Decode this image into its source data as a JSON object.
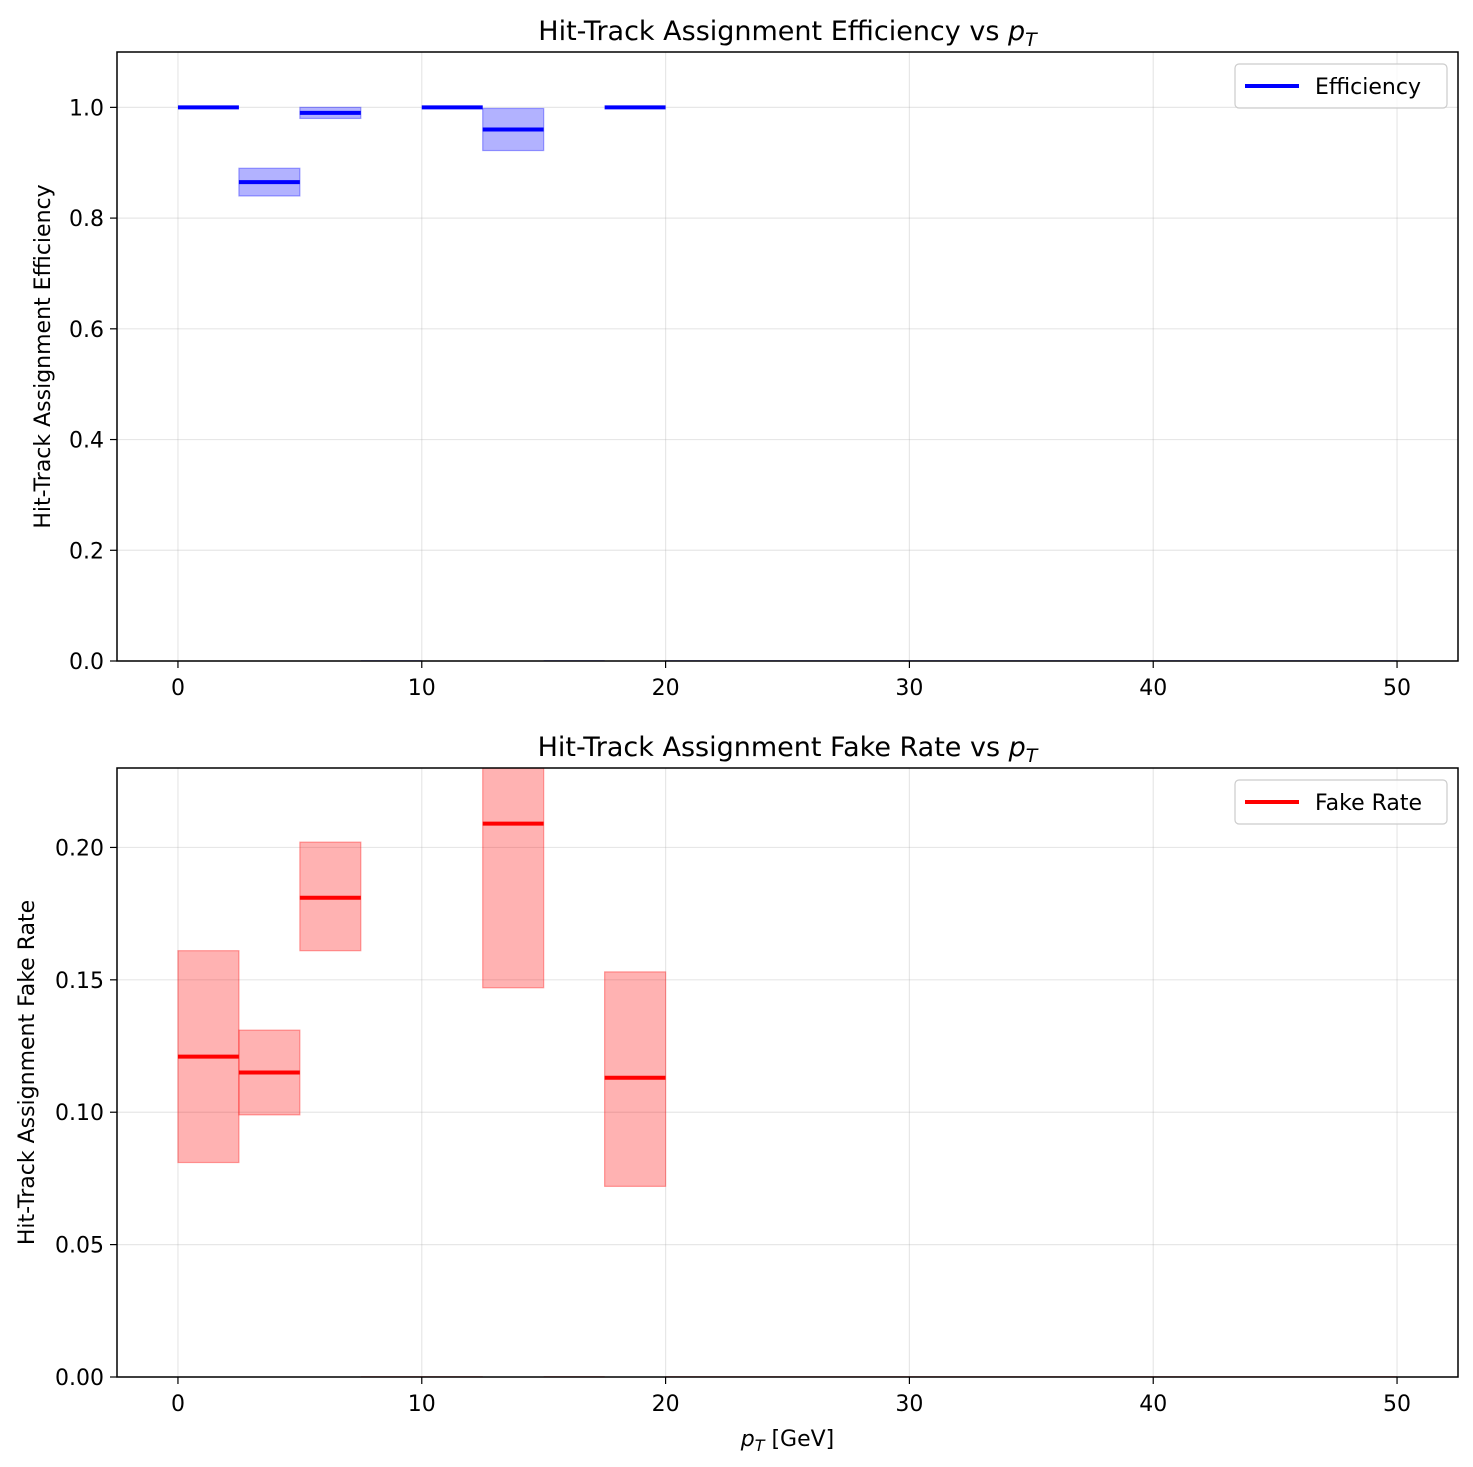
{
  "chart_data": [
    {
      "type": "step",
      "title": "Hit-Track Assignment Efficiency vs ",
      "title_math": "p",
      "title_math_sub": "T",
      "xlabel": "",
      "ylabel": "Hit-Track Assignment Efficiency",
      "xlim": [
        -2.5,
        52.5
      ],
      "ylim": [
        0.0,
        1.1
      ],
      "xticks": [
        0,
        10,
        20,
        30,
        40,
        50
      ],
      "yticks": [
        0.0,
        0.2,
        0.4,
        0.6,
        0.8,
        1.0
      ],
      "ytick_labels": [
        "0.0",
        "0.2",
        "0.4",
        "0.6",
        "0.8",
        "1.0"
      ],
      "grid": true,
      "legend": "top-right",
      "series": [
        {
          "name": "Efficiency",
          "color": "#0000ff",
          "bins": [
            {
              "x0": 0.0,
              "x1": 2.5,
              "y": 1.0,
              "lo": 1.0,
              "hi": 1.0
            },
            {
              "x0": 2.5,
              "x1": 5.0,
              "y": 0.865,
              "lo": 0.84,
              "hi": 0.89
            },
            {
              "x0": 5.0,
              "x1": 7.5,
              "y": 0.99,
              "lo": 0.98,
              "hi": 1.0
            },
            {
              "x0": 7.5,
              "x1": 10.0,
              "y": 0.0,
              "lo": 0.0,
              "hi": 0.0
            },
            {
              "x0": 10.0,
              "x1": 12.5,
              "y": 1.0,
              "lo": 1.0,
              "hi": 1.0
            },
            {
              "x0": 12.5,
              "x1": 15.0,
              "y": 0.96,
              "lo": 0.922,
              "hi": 0.998
            },
            {
              "x0": 15.0,
              "x1": 17.5,
              "y": 0.0,
              "lo": 0.0,
              "hi": 0.0
            },
            {
              "x0": 17.5,
              "x1": 20.0,
              "y": 1.0,
              "lo": 1.0,
              "hi": 1.0
            },
            {
              "x0": 20.0,
              "x1": 50.0,
              "y": 0.0,
              "lo": 0.0,
              "hi": 0.0
            }
          ]
        }
      ]
    },
    {
      "type": "step",
      "title": "Hit-Track Assignment Fake Rate vs ",
      "title_math": "p",
      "title_math_sub": "T",
      "xlabel": " [GeV]",
      "xlabel_math": "p",
      "xlabel_math_sub": "T",
      "ylabel": "Hit-Track Assignment Fake Rate",
      "xlim": [
        -2.5,
        52.5
      ],
      "ylim": [
        0.0,
        0.23
      ],
      "xticks": [
        0,
        10,
        20,
        30,
        40,
        50
      ],
      "yticks": [
        0.0,
        0.05,
        0.1,
        0.15,
        0.2
      ],
      "ytick_labels": [
        "0.00",
        "0.05",
        "0.10",
        "0.15",
        "0.20"
      ],
      "grid": true,
      "legend": "top-right",
      "series": [
        {
          "name": "Fake Rate",
          "color": "#ff0000",
          "bins": [
            {
              "x0": 0.0,
              "x1": 2.5,
              "y": 0.121,
              "lo": 0.081,
              "hi": 0.161
            },
            {
              "x0": 2.5,
              "x1": 5.0,
              "y": 0.115,
              "lo": 0.099,
              "hi": 0.131
            },
            {
              "x0": 5.0,
              "x1": 7.5,
              "y": 0.181,
              "lo": 0.161,
              "hi": 0.202
            },
            {
              "x0": 7.5,
              "x1": 10.0,
              "y": 0.0,
              "lo": 0.0,
              "hi": 0.0
            },
            {
              "x0": 10.0,
              "x1": 12.5,
              "y": 0.0,
              "lo": 0.0,
              "hi": 0.0
            },
            {
              "x0": 12.5,
              "x1": 15.0,
              "y": 0.209,
              "lo": 0.147,
              "hi": 0.23
            },
            {
              "x0": 15.0,
              "x1": 17.5,
              "y": 0.0,
              "lo": 0.0,
              "hi": 0.0
            },
            {
              "x0": 17.5,
              "x1": 20.0,
              "y": 0.113,
              "lo": 0.072,
              "hi": 0.153
            },
            {
              "x0": 20.0,
              "x1": 50.0,
              "y": 0.0,
              "lo": 0.0,
              "hi": 0.0
            }
          ]
        }
      ]
    }
  ]
}
